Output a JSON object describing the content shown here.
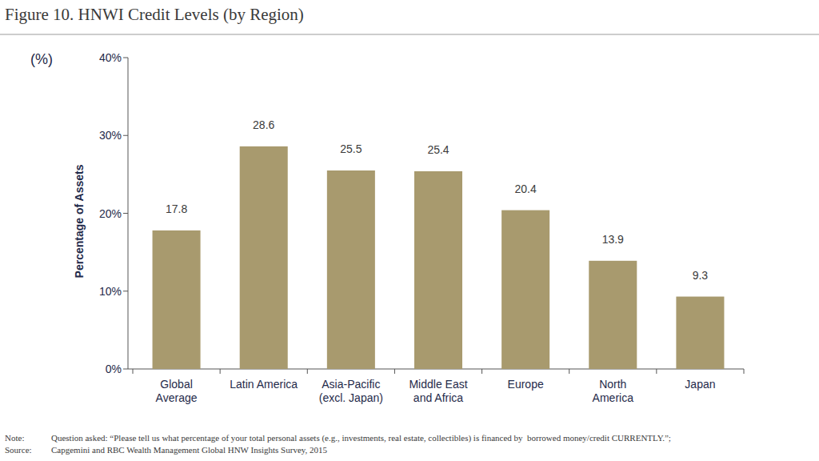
{
  "chart_data": {
    "type": "bar",
    "title": "Figure 10. HNWI Credit Levels (by Region)",
    "ylabel": "Percentage of Assets",
    "annotations": [
      "(%)"
    ],
    "categories": [
      "Global Average",
      "Latin America",
      "Asia-Pacific (excl. Japan)",
      "Middle East and Africa",
      "Europe",
      "North America",
      "Japan"
    ],
    "values": [
      17.8,
      28.6,
      25.5,
      25.4,
      20.4,
      13.9,
      9.3
    ],
    "color": "#a89a6e",
    "ylim": [
      0,
      40
    ],
    "yticks": [
      {
        "value": 0,
        "label": "0%"
      },
      {
        "value": 10,
        "label": "10%"
      },
      {
        "value": 20,
        "label": "20%"
      },
      {
        "value": 30,
        "label": "30%"
      },
      {
        "value": 40,
        "label": "40%"
      }
    ],
    "grid": false,
    "data_labels": true,
    "notes": [
      {
        "label": "Note:",
        "text": "Question asked: “Please tell us what percentage of your total personal assets (e.g., investments, real estate, collectibles) is financed by  borrowed money/credit CURRENTLY.”;"
      },
      {
        "label": "Source:",
        "text": "Capgemini and RBC Wealth Management Global HNW Insights Survey, 2015"
      }
    ]
  }
}
